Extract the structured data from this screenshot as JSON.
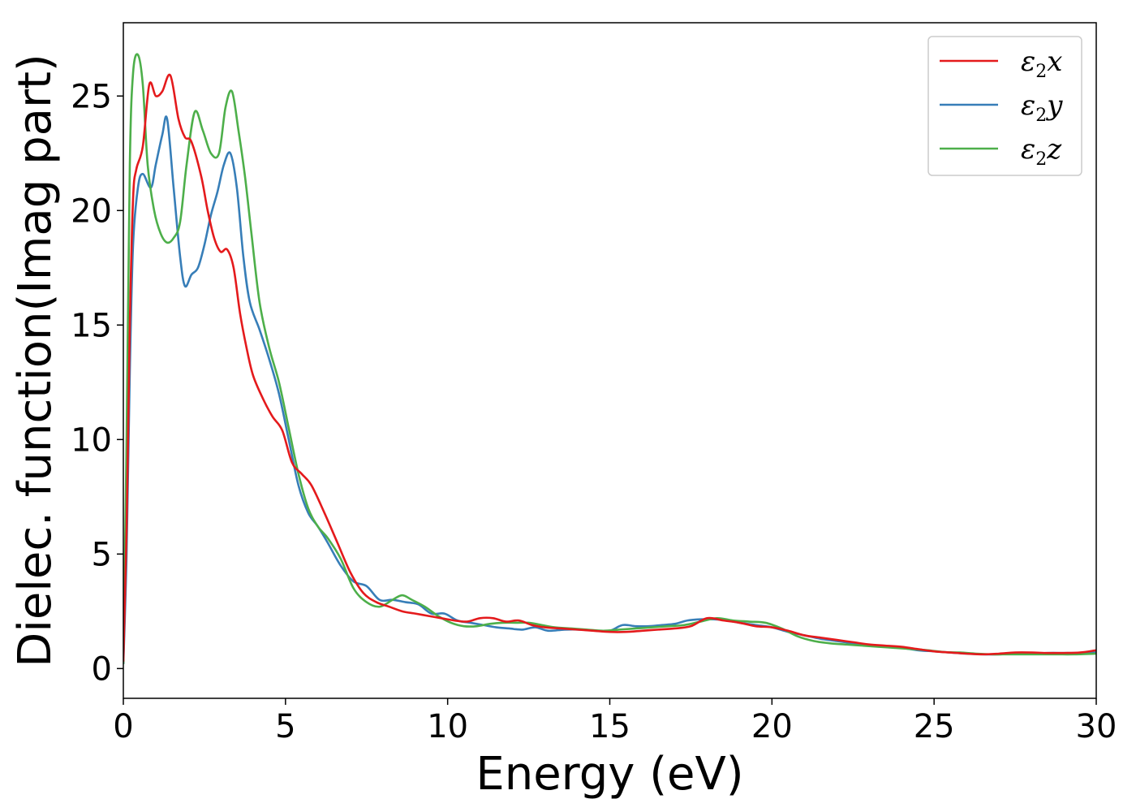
{
  "chart_data": {
    "type": "line",
    "title": "",
    "xlabel": "Energy (eV)",
    "ylabel": "Dielec. function(Imag part)",
    "xlim": [
      0,
      30
    ],
    "ylim": [
      -1.3,
      28.2
    ],
    "xticks": [
      0,
      5,
      10,
      15,
      20,
      25,
      30
    ],
    "yticks": [
      0,
      5,
      10,
      15,
      20,
      25
    ],
    "grid": false,
    "legend_position": "top-right",
    "series": [
      {
        "name": "ε2x",
        "name_base": "ε",
        "name_sub": "2",
        "name_var": "x",
        "color": "#e41a1c",
        "x": [
          0,
          0.1,
          0.2,
          0.3,
          0.4,
          0.6,
          0.8,
          1.0,
          1.2,
          1.45,
          1.7,
          1.9,
          2.1,
          2.4,
          2.6,
          2.8,
          3.0,
          3.2,
          3.4,
          3.6,
          3.8,
          4.0,
          4.3,
          4.6,
          4.9,
          5.2,
          5.5,
          5.8,
          6.2,
          6.6,
          7.0,
          7.4,
          7.8,
          8.2,
          8.6,
          9.0,
          9.4,
          9.8,
          10.2,
          10.6,
          11.0,
          11.4,
          11.8,
          12.2,
          12.6,
          13.0,
          13.5,
          14.0,
          14.5,
          15.0,
          15.5,
          16.0,
          16.5,
          17.0,
          17.5,
          18.0,
          18.5,
          19.0,
          19.5,
          20.0,
          20.5,
          21.0,
          21.5,
          22.0,
          22.5,
          23.0,
          23.5,
          24.0,
          24.5,
          25.0,
          25.5,
          26.0,
          26.5,
          27.0,
          27.5,
          28.0,
          28.5,
          29.0,
          29.5,
          30.0
        ],
        "y": [
          0.3,
          6.0,
          15.0,
          20.5,
          21.8,
          22.8,
          25.5,
          25.0,
          25.2,
          25.9,
          24.0,
          23.2,
          23.0,
          21.5,
          20.0,
          18.8,
          18.2,
          18.3,
          17.5,
          15.5,
          14.0,
          12.8,
          11.8,
          11.0,
          10.4,
          9.0,
          8.5,
          8.0,
          6.8,
          5.5,
          4.2,
          3.3,
          2.9,
          2.7,
          2.5,
          2.4,
          2.3,
          2.2,
          2.1,
          2.05,
          2.2,
          2.2,
          2.05,
          2.1,
          1.9,
          1.8,
          1.75,
          1.7,
          1.65,
          1.6,
          1.6,
          1.65,
          1.7,
          1.75,
          1.85,
          2.2,
          2.1,
          2.0,
          1.85,
          1.8,
          1.65,
          1.45,
          1.35,
          1.25,
          1.15,
          1.05,
          1.0,
          0.95,
          0.85,
          0.75,
          0.7,
          0.65,
          0.62,
          0.65,
          0.7,
          0.7,
          0.68,
          0.68,
          0.7,
          0.8
        ]
      },
      {
        "name": "ε2y",
        "name_base": "ε",
        "name_sub": "2",
        "name_var": "y",
        "color": "#377eb8",
        "x": [
          0,
          0.1,
          0.2,
          0.3,
          0.45,
          0.6,
          0.85,
          1.0,
          1.2,
          1.35,
          1.55,
          1.75,
          1.9,
          2.1,
          2.3,
          2.5,
          2.7,
          2.9,
          3.1,
          3.3,
          3.5,
          3.7,
          3.9,
          4.2,
          4.5,
          4.8,
          5.1,
          5.4,
          5.7,
          6.0,
          6.3,
          6.7,
          7.1,
          7.5,
          7.9,
          8.3,
          8.7,
          9.1,
          9.5,
          9.9,
          10.3,
          10.7,
          11.1,
          11.5,
          11.9,
          12.3,
          12.7,
          13.1,
          13.6,
          14.1,
          14.6,
          15.0,
          15.4,
          15.8,
          16.2,
          16.6,
          17.0,
          17.4,
          17.8,
          18.2,
          18.6,
          19.0,
          19.5,
          20.0,
          20.5,
          21.0,
          21.5,
          22.0,
          22.5,
          23.0,
          23.5,
          24.0,
          24.5,
          25.0,
          25.5,
          26.0,
          26.5,
          27.0,
          27.5,
          28.0,
          28.5,
          29.0,
          29.5,
          30.0
        ],
        "y": [
          0.2,
          5.0,
          13.0,
          18.5,
          21.0,
          21.6,
          21.0,
          22.0,
          23.3,
          24.0,
          21.0,
          18.0,
          16.7,
          17.2,
          17.5,
          18.5,
          19.8,
          20.8,
          22.0,
          22.5,
          21.0,
          18.0,
          16.0,
          14.8,
          13.5,
          12.0,
          10.0,
          8.0,
          6.8,
          6.2,
          5.5,
          4.5,
          3.8,
          3.6,
          3.0,
          3.0,
          2.9,
          2.8,
          2.4,
          2.4,
          2.1,
          2.0,
          1.9,
          1.8,
          1.75,
          1.7,
          1.8,
          1.65,
          1.7,
          1.7,
          1.65,
          1.65,
          1.9,
          1.85,
          1.85,
          1.9,
          1.95,
          2.1,
          2.15,
          2.15,
          2.1,
          2.0,
          1.9,
          1.8,
          1.6,
          1.45,
          1.3,
          1.2,
          1.1,
          1.0,
          0.95,
          0.9,
          0.8,
          0.75,
          0.7,
          0.65,
          0.62,
          0.62,
          0.65,
          0.65,
          0.68,
          0.68,
          0.68,
          0.7
        ]
      },
      {
        "name": "ε2z",
        "name_base": "ε",
        "name_sub": "2",
        "name_var": "z",
        "color": "#4daf4a",
        "x": [
          0,
          0.1,
          0.2,
          0.3,
          0.45,
          0.6,
          0.75,
          0.95,
          1.15,
          1.35,
          1.55,
          1.75,
          1.95,
          2.2,
          2.45,
          2.7,
          2.95,
          3.15,
          3.35,
          3.55,
          3.75,
          3.95,
          4.2,
          4.5,
          4.8,
          5.1,
          5.4,
          5.7,
          6.0,
          6.3,
          6.7,
          7.1,
          7.5,
          7.9,
          8.3,
          8.6,
          8.9,
          9.3,
          9.7,
          10.1,
          10.5,
          10.9,
          11.3,
          11.7,
          12.1,
          12.5,
          12.9,
          13.3,
          13.8,
          14.3,
          14.8,
          15.3,
          15.8,
          16.3,
          16.8,
          17.3,
          17.8,
          18.3,
          18.8,
          19.3,
          19.8,
          20.3,
          20.8,
          21.3,
          21.8,
          22.3,
          22.8,
          23.3,
          23.8,
          24.3,
          24.8,
          25.3,
          25.8,
          26.3,
          26.8,
          27.3,
          27.8,
          28.3,
          28.8,
          29.3,
          30.0
        ],
        "y": [
          0.2,
          10.0,
          22.0,
          26.0,
          26.8,
          25.5,
          22.0,
          20.0,
          19.0,
          18.6,
          18.8,
          19.5,
          22.0,
          24.3,
          23.5,
          22.5,
          22.5,
          24.5,
          25.2,
          23.5,
          21.5,
          19.0,
          16.0,
          14.0,
          12.5,
          10.5,
          8.5,
          7.0,
          6.2,
          5.7,
          4.8,
          3.5,
          2.9,
          2.7,
          3.0,
          3.2,
          3.0,
          2.7,
          2.3,
          2.0,
          1.85,
          1.85,
          1.95,
          2.0,
          2.0,
          2.0,
          1.9,
          1.8,
          1.75,
          1.7,
          1.65,
          1.7,
          1.75,
          1.8,
          1.85,
          1.9,
          2.05,
          2.2,
          2.1,
          2.05,
          2.0,
          1.75,
          1.4,
          1.2,
          1.1,
          1.05,
          1.0,
          0.95,
          0.9,
          0.85,
          0.8,
          0.72,
          0.7,
          0.65,
          0.62,
          0.62,
          0.62,
          0.62,
          0.62,
          0.62,
          0.65
        ]
      }
    ]
  }
}
